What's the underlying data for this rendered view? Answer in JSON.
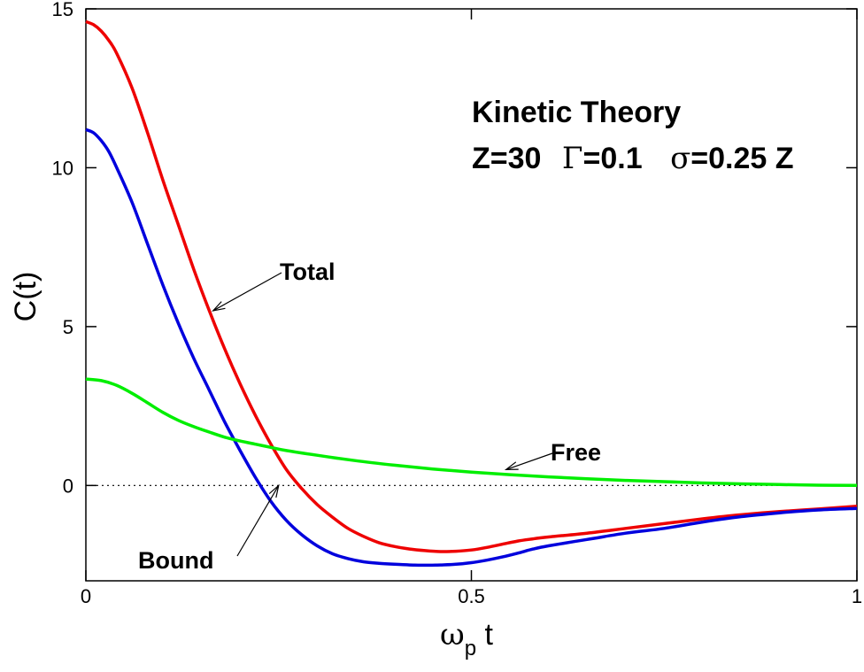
{
  "chart_data": {
    "type": "line",
    "title": "Kinetic Theory",
    "subtitle_parts": {
      "z": "Z=30",
      "gamma_symbol": "Γ",
      "gamma_value": "=0.1",
      "sigma_symbol": "σ",
      "sigma_value": "=0.25 Z"
    },
    "xlabel": {
      "main": "ω",
      "sub": "p",
      "tail": " t"
    },
    "ylabel": "C(t)",
    "xlim": [
      0,
      1
    ],
    "ylim": [
      -3,
      15
    ],
    "xticks": [
      0,
      0.5,
      1
    ],
    "xtick_labels": [
      "0",
      "0.5",
      "1"
    ],
    "yticks": [
      0,
      5,
      10,
      15
    ],
    "ytick_labels": [
      "0",
      "5",
      "10",
      "15"
    ],
    "grid": false,
    "zero_line": "dotted",
    "colors": {
      "Total": "#ee0000",
      "Bound": "#0000dd",
      "Free": "#00ee00"
    },
    "series": [
      {
        "name": "Total",
        "x": [
          0,
          0.01,
          0.02,
          0.03,
          0.04,
          0.06,
          0.08,
          0.1,
          0.12,
          0.14,
          0.16,
          0.18,
          0.2,
          0.22,
          0.24,
          0.26,
          0.28,
          0.3,
          0.32,
          0.34,
          0.36,
          0.38,
          0.4,
          0.42,
          0.44,
          0.46,
          0.48,
          0.5,
          0.52,
          0.54,
          0.56,
          0.58,
          0.6,
          0.65,
          0.7,
          0.75,
          0.8,
          0.85,
          0.9,
          0.95,
          1.0
        ],
        "y": [
          14.6,
          14.5,
          14.3,
          14.0,
          13.6,
          12.5,
          11.1,
          9.6,
          8.2,
          6.8,
          5.5,
          4.3,
          3.2,
          2.2,
          1.3,
          0.5,
          -0.1,
          -0.6,
          -1.0,
          -1.35,
          -1.6,
          -1.8,
          -1.92,
          -2.0,
          -2.05,
          -2.08,
          -2.07,
          -2.03,
          -1.95,
          -1.85,
          -1.75,
          -1.68,
          -1.62,
          -1.5,
          -1.35,
          -1.2,
          -1.05,
          -0.92,
          -0.82,
          -0.74,
          -0.65
        ]
      },
      {
        "name": "Bound",
        "x": [
          0,
          0.01,
          0.02,
          0.03,
          0.04,
          0.06,
          0.08,
          0.1,
          0.12,
          0.14,
          0.16,
          0.18,
          0.2,
          0.22,
          0.24,
          0.26,
          0.28,
          0.3,
          0.32,
          0.34,
          0.36,
          0.38,
          0.4,
          0.42,
          0.44,
          0.46,
          0.48,
          0.5,
          0.52,
          0.54,
          0.56,
          0.58,
          0.6,
          0.65,
          0.7,
          0.75,
          0.8,
          0.85,
          0.9,
          0.95,
          1.0
        ],
        "y": [
          11.2,
          11.1,
          10.85,
          10.5,
          10.0,
          8.9,
          7.6,
          6.3,
          5.1,
          4.0,
          3.0,
          2.0,
          1.1,
          0.25,
          -0.5,
          -1.1,
          -1.55,
          -1.9,
          -2.15,
          -2.3,
          -2.4,
          -2.45,
          -2.48,
          -2.5,
          -2.51,
          -2.5,
          -2.48,
          -2.43,
          -2.35,
          -2.25,
          -2.13,
          -2.0,
          -1.9,
          -1.7,
          -1.5,
          -1.35,
          -1.15,
          -0.98,
          -0.86,
          -0.77,
          -0.72
        ]
      },
      {
        "name": "Free",
        "x": [
          0,
          0.02,
          0.04,
          0.06,
          0.08,
          0.1,
          0.12,
          0.14,
          0.16,
          0.18,
          0.2,
          0.22,
          0.24,
          0.26,
          0.3,
          0.35,
          0.4,
          0.45,
          0.5,
          0.55,
          0.6,
          0.65,
          0.7,
          0.75,
          0.8,
          0.85,
          0.9,
          0.95,
          1.0
        ],
        "y": [
          3.35,
          3.3,
          3.15,
          2.9,
          2.6,
          2.3,
          2.05,
          1.85,
          1.68,
          1.52,
          1.4,
          1.3,
          1.2,
          1.1,
          0.95,
          0.78,
          0.64,
          0.52,
          0.42,
          0.34,
          0.27,
          0.21,
          0.16,
          0.12,
          0.08,
          0.05,
          0.03,
          0.01,
          0.0
        ]
      }
    ],
    "annotations": [
      {
        "text": "Total",
        "arrow_to": [
          0.165,
          5.5
        ]
      },
      {
        "text": "Free",
        "arrow_to": [
          0.545,
          0.5
        ]
      },
      {
        "text": "Bound",
        "arrow_to": [
          0.25,
          0.0
        ]
      }
    ]
  }
}
